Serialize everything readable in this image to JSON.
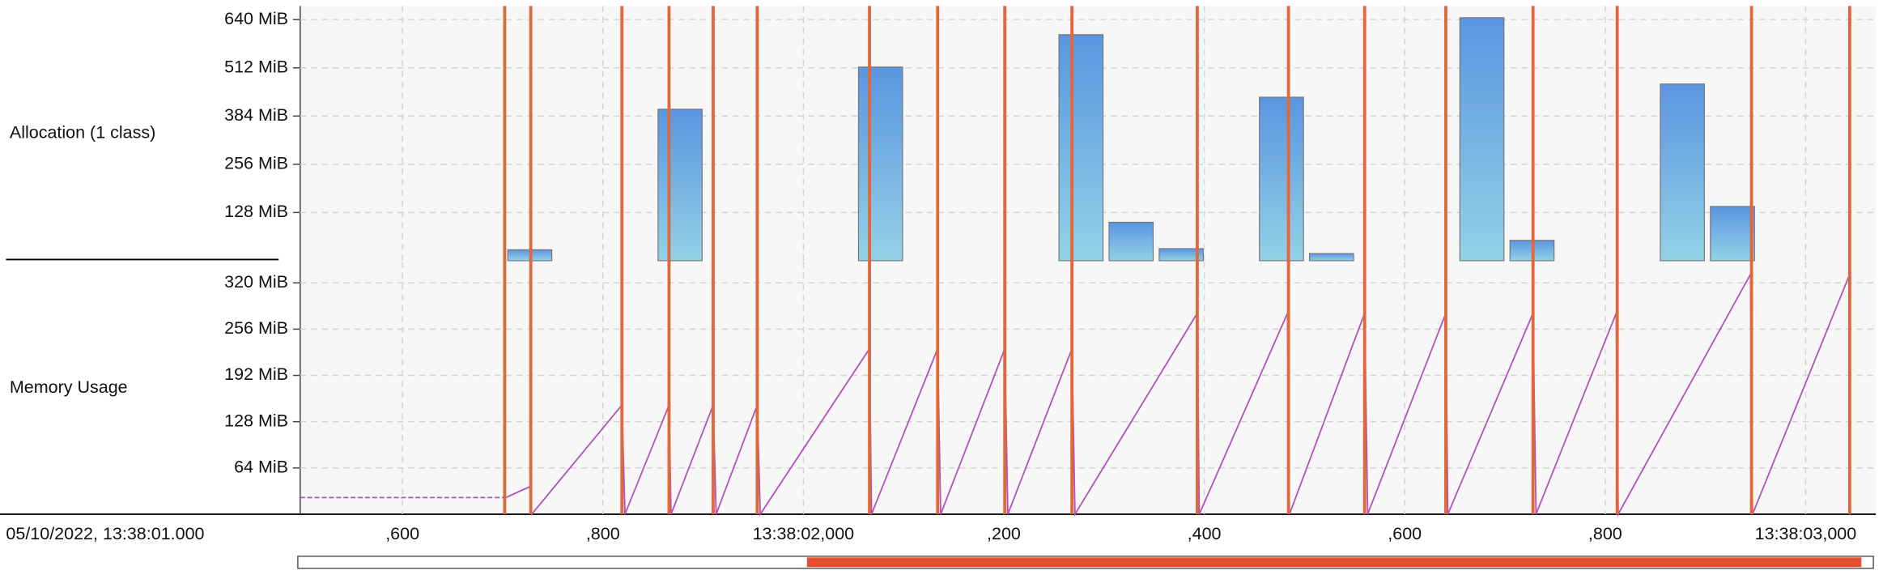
{
  "chart_data": [
    {
      "type": "bar",
      "label": "Allocation (1 class)",
      "x": [
        727,
        877,
        1077,
        1277,
        1327,
        1377,
        1477,
        1527,
        1677,
        1727,
        1877,
        1927
      ],
      "values": [
        29,
        402,
        514,
        600,
        102,
        32,
        434,
        19,
        645,
        54,
        469,
        144
      ],
      "ylim": [
        0,
        676
      ],
      "yticks": [
        {
          "value": 128,
          "label": "128 MiB"
        },
        {
          "value": 256,
          "label": "256 MiB"
        },
        {
          "value": 384,
          "label": "384 MiB"
        },
        {
          "value": 512,
          "label": "512 MiB"
        },
        {
          "value": 640,
          "label": "640 MiB"
        }
      ],
      "grid": true,
      "color": "#5b95e0"
    },
    {
      "type": "line",
      "label": "Memory Usage",
      "series": [
        {
          "color": "#b050b8",
          "dashed": true,
          "x": [
            498,
            703
          ],
          "values": [
            23,
            23
          ]
        },
        {
          "color": "#b050b8",
          "dashed": false,
          "x": [
            703,
            727,
            729,
            819,
            822,
            866,
            868,
            910,
            913,
            954,
            957,
            1066,
            1068,
            1134,
            1137,
            1201,
            1204,
            1268,
            1271,
            1393,
            1395,
            1483,
            1485,
            1560,
            1563,
            1641,
            1643,
            1728,
            1731,
            1811,
            1813,
            1945,
            1947,
            2044
          ],
          "values": [
            23,
            38,
            0,
            151,
            0,
            151,
            0,
            151,
            0,
            151,
            0,
            229,
            0,
            229,
            0,
            229,
            0,
            229,
            0,
            278,
            0,
            278,
            0,
            278,
            0,
            278,
            0,
            278,
            0,
            278,
            0,
            332,
            0,
            332
          ]
        }
      ],
      "ylim": [
        0,
        349
      ],
      "yticks": [
        {
          "value": 64,
          "label": "64 MiB"
        },
        {
          "value": 128,
          "label": "128 MiB"
        },
        {
          "value": 192,
          "label": "192 MiB"
        },
        {
          "value": 256,
          "label": "256 MiB"
        },
        {
          "value": 320,
          "label": "320 MiB"
        }
      ],
      "grid": true
    }
  ],
  "timeline": {
    "start_label": "05/10/2022, 13:38:01.000",
    "xlim": [
      498,
      2070
    ],
    "xticks": [
      {
        "value": 600,
        "label": ",600"
      },
      {
        "value": 800,
        "label": ",800"
      },
      {
        "value": 1000,
        "label": "13:38:02,000"
      },
      {
        "value": 1200,
        "label": ",200"
      },
      {
        "value": 1400,
        "label": ",400"
      },
      {
        "value": 1600,
        "label": ",600"
      },
      {
        "value": 1800,
        "label": ",800"
      },
      {
        "value": 2000,
        "label": "13:38:03,000"
      }
    ]
  },
  "gc_events": {
    "color": "#e0683a",
    "x": [
      702,
      728,
      819,
      866,
      910,
      954,
      1066,
      1134,
      1201,
      1268,
      1393,
      1484,
      1560,
      1641,
      1728,
      1812,
      1946,
      2044
    ]
  }
}
